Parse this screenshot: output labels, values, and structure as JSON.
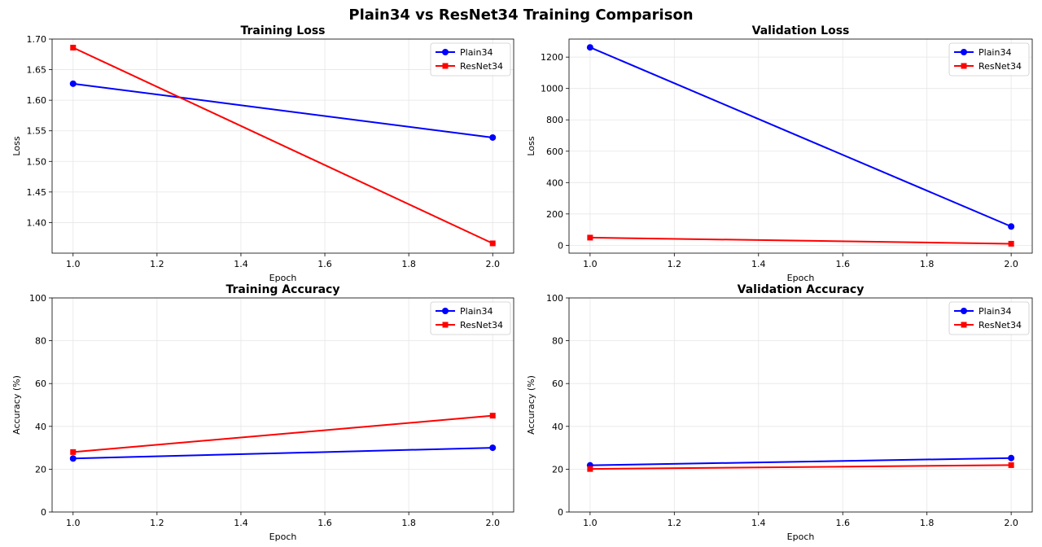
{
  "figure": {
    "title": "Plain34 vs ResNet34 Training Comparison",
    "series_colors": {
      "Plain34": "#0000ff",
      "ResNet34": "#ff0000"
    },
    "series_markers": {
      "Plain34": "circle",
      "ResNet34": "square"
    }
  },
  "chart_data": [
    {
      "type": "line",
      "title": "Training Loss",
      "xlabel": "Epoch",
      "ylabel": "Loss",
      "x": [
        1.0,
        2.0
      ],
      "series": [
        {
          "name": "Plain34",
          "values": [
            1.627,
            1.539
          ]
        },
        {
          "name": "ResNet34",
          "values": [
            1.686,
            1.366
          ]
        }
      ],
      "xlim": [
        0.95,
        2.05
      ],
      "ylim": [
        1.35,
        1.7
      ],
      "xticks": [
        "1.0",
        "1.2",
        "1.4",
        "1.6",
        "1.8",
        "2.0"
      ],
      "yticks": [
        "1.40",
        "1.45",
        "1.50",
        "1.55",
        "1.60",
        "1.65",
        "1.70"
      ],
      "grid": true,
      "legend": "top-right"
    },
    {
      "type": "line",
      "title": "Validation Loss",
      "xlabel": "Epoch",
      "ylabel": "Loss",
      "x": [
        1.0,
        2.0
      ],
      "series": [
        {
          "name": "Plain34",
          "values": [
            1262,
            120
          ]
        },
        {
          "name": "ResNet34",
          "values": [
            49,
            10
          ]
        }
      ],
      "xlim": [
        0.95,
        2.05
      ],
      "ylim": [
        -50,
        1315
      ],
      "xticks": [
        "1.0",
        "1.2",
        "1.4",
        "1.6",
        "1.8",
        "2.0"
      ],
      "yticks": [
        "0",
        "200",
        "400",
        "600",
        "800",
        "1000",
        "1200"
      ],
      "grid": true,
      "legend": "top-right"
    },
    {
      "type": "line",
      "title": "Training Accuracy",
      "xlabel": "Epoch",
      "ylabel": "Accuracy (%)",
      "x": [
        1.0,
        2.0
      ],
      "series": [
        {
          "name": "Plain34",
          "values": [
            25,
            30
          ]
        },
        {
          "name": "ResNet34",
          "values": [
            28,
            45
          ]
        }
      ],
      "xlim": [
        0.95,
        2.05
      ],
      "ylim": [
        0,
        100
      ],
      "xticks": [
        "1.0",
        "1.2",
        "1.4",
        "1.6",
        "1.8",
        "2.0"
      ],
      "yticks": [
        "0",
        "20",
        "40",
        "60",
        "80",
        "100"
      ],
      "grid": true,
      "legend": "top-right"
    },
    {
      "type": "line",
      "title": "Validation Accuracy",
      "xlabel": "Epoch",
      "ylabel": "Accuracy (%)",
      "x": [
        1.0,
        2.0
      ],
      "series": [
        {
          "name": "Plain34",
          "values": [
            21.8,
            25.2
          ]
        },
        {
          "name": "ResNet34",
          "values": [
            20.1,
            21.9
          ]
        }
      ],
      "xlim": [
        0.95,
        2.05
      ],
      "ylim": [
        0,
        100
      ],
      "xticks": [
        "1.0",
        "1.2",
        "1.4",
        "1.6",
        "1.8",
        "2.0"
      ],
      "yticks": [
        "0",
        "20",
        "40",
        "60",
        "80",
        "100"
      ],
      "grid": true,
      "legend": "top-right"
    }
  ]
}
